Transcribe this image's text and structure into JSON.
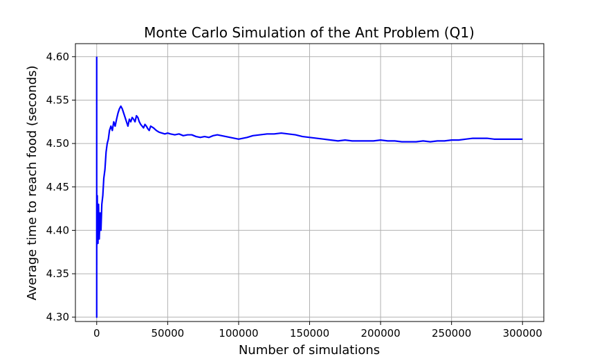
{
  "chart_data": {
    "type": "line",
    "title": "Monte Carlo Simulation of the Ant Problem (Q1)",
    "xlabel": "Number of simulations",
    "ylabel": "Average time to reach food (seconds)",
    "xlim": [
      -15000,
      315000
    ],
    "ylim": [
      4.295,
      4.615
    ],
    "xticks": [
      0,
      50000,
      100000,
      150000,
      200000,
      250000,
      300000
    ],
    "yticks": [
      4.3,
      4.35,
      4.4,
      4.45,
      4.5,
      4.55,
      4.6
    ],
    "xtick_labels": [
      "0",
      "50000",
      "100000",
      "150000",
      "200000",
      "250000",
      "300000"
    ],
    "ytick_labels": [
      "4.30",
      "4.35",
      "4.40",
      "4.45",
      "4.50",
      "4.55",
      "4.60"
    ],
    "grid": true,
    "color": "#0000ff",
    "series": [
      {
        "x": [
          1,
          2,
          3,
          5,
          8,
          12,
          20,
          35,
          60,
          100,
          160,
          250,
          400,
          600,
          900,
          1300,
          1800,
          2400,
          3000,
          3600,
          4300,
          5000,
          5800,
          6600,
          7400,
          8200,
          9000,
          10000,
          11000,
          12000,
          13000,
          14000,
          15000,
          16000,
          17000,
          18000,
          19000,
          20000,
          21000,
          22000,
          23000,
          24000,
          25000,
          26000,
          27000,
          28000,
          29000,
          30000,
          31000,
          32000,
          33000,
          34000,
          35000,
          36000,
          37000,
          38000,
          40000,
          42000,
          44000,
          46000,
          48000,
          50000,
          52000,
          55000,
          58000,
          61000,
          64000,
          67000,
          70000,
          73000,
          76000,
          79000,
          82000,
          85000,
          88000,
          91000,
          94000,
          97000,
          100000,
          103000,
          106000,
          110000,
          115000,
          120000,
          125000,
          130000,
          135000,
          140000,
          145000,
          150000,
          155000,
          160000,
          165000,
          170000,
          175000,
          180000,
          185000,
          190000,
          195000,
          200000,
          205000,
          210000,
          215000,
          220000,
          225000,
          230000,
          235000,
          240000,
          245000,
          250000,
          255000,
          260000,
          265000,
          270000,
          275000,
          280000,
          285000,
          290000,
          295000,
          300000
        ],
        "values": [
          4.6,
          4.3,
          4.45,
          4.33,
          4.42,
          4.36,
          4.4,
          4.38,
          4.41,
          4.39,
          4.42,
          4.385,
          4.44,
          4.4,
          4.385,
          4.43,
          4.39,
          4.42,
          4.4,
          4.43,
          4.44,
          4.46,
          4.47,
          4.49,
          4.5,
          4.505,
          4.515,
          4.52,
          4.515,
          4.525,
          4.52,
          4.528,
          4.535,
          4.54,
          4.543,
          4.54,
          4.535,
          4.53,
          4.525,
          4.52,
          4.528,
          4.525,
          4.53,
          4.528,
          4.525,
          4.532,
          4.53,
          4.525,
          4.522,
          4.52,
          4.518,
          4.522,
          4.52,
          4.517,
          4.515,
          4.52,
          4.518,
          4.515,
          4.513,
          4.512,
          4.511,
          4.512,
          4.511,
          4.51,
          4.511,
          4.509,
          4.51,
          4.51,
          4.508,
          4.507,
          4.508,
          4.507,
          4.509,
          4.51,
          4.509,
          4.508,
          4.507,
          4.506,
          4.505,
          4.506,
          4.507,
          4.509,
          4.51,
          4.511,
          4.511,
          4.512,
          4.511,
          4.51,
          4.508,
          4.507,
          4.506,
          4.505,
          4.504,
          4.503,
          4.504,
          4.503,
          4.503,
          4.503,
          4.503,
          4.504,
          4.503,
          4.503,
          4.502,
          4.502,
          4.502,
          4.503,
          4.502,
          4.503,
          4.503,
          4.504,
          4.504,
          4.505,
          4.506,
          4.506,
          4.506,
          4.505,
          4.505,
          4.505,
          4.505,
          4.505
        ]
      }
    ]
  }
}
